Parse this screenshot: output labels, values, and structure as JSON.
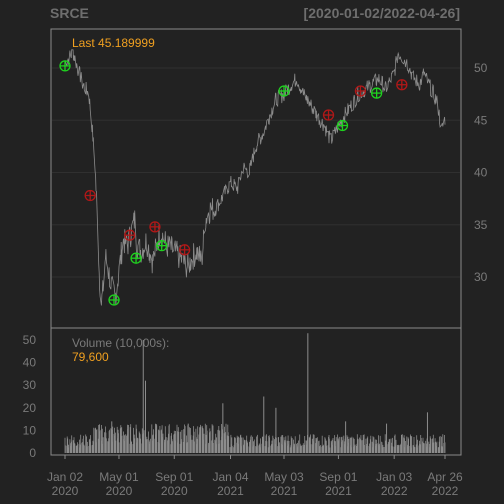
{
  "header": {
    "symbol": "SRCE",
    "date_range": "[2020-01-02/2022-04-26]"
  },
  "chart_data": [
    {
      "type": "line",
      "name": "price-panel",
      "annotation_label": "Last 45.189999",
      "ylim": [
        24.8,
        54.0
      ],
      "y_ticks": [
        30,
        35,
        40,
        45,
        50
      ],
      "x": [
        "2020-01-02",
        "2020-01-20",
        "2020-02-10",
        "2020-02-24",
        "2020-03-02",
        "2020-03-09",
        "2020-03-12",
        "2020-03-16",
        "2020-03-18",
        "2020-03-23",
        "2020-03-26",
        "2020-04-01",
        "2020-04-08",
        "2020-04-15",
        "2020-04-22",
        "2020-05-01",
        "2020-05-10",
        "2020-05-20",
        "2020-06-05",
        "2020-06-10",
        "2020-06-20",
        "2020-07-01",
        "2020-07-15",
        "2020-08-01",
        "2020-08-15",
        "2020-09-01",
        "2020-09-20",
        "2020-10-01",
        "2020-10-20",
        "2020-11-01",
        "2020-11-09",
        "2020-11-20",
        "2020-12-01",
        "2020-12-15",
        "2021-01-04",
        "2021-01-20",
        "2021-02-01",
        "2021-02-15",
        "2021-03-01",
        "2021-03-20",
        "2021-04-01",
        "2021-04-15",
        "2021-05-03",
        "2021-05-20",
        "2021-06-01",
        "2021-06-15",
        "2021-07-01",
        "2021-07-15",
        "2021-08-01",
        "2021-08-15",
        "2021-09-01",
        "2021-09-15",
        "2021-10-01",
        "2021-10-15",
        "2021-11-01",
        "2021-11-15",
        "2021-12-01",
        "2021-12-15",
        "2022-01-03",
        "2022-01-12",
        "2022-02-01",
        "2022-02-15",
        "2022-03-01",
        "2022-03-10",
        "2022-03-20",
        "2022-04-01",
        "2022-04-10",
        "2022-04-18",
        "2022-04-26"
      ],
      "close": [
        50.5,
        51.5,
        48.5,
        47.5,
        44.5,
        40.5,
        37.5,
        33.5,
        30.5,
        27.5,
        28.5,
        32.0,
        30.5,
        29.0,
        28.0,
        30.5,
        33.5,
        33.0,
        35.5,
        33.0,
        32.5,
        33.5,
        31.5,
        34.5,
        33.0,
        32.5,
        31.5,
        31.0,
        32.5,
        31.5,
        35.5,
        36.5,
        36.5,
        37.5,
        39.0,
        38.5,
        40.5,
        40.0,
        42.5,
        44.0,
        45.5,
        47.0,
        47.5,
        48.5,
        49.0,
        47.5,
        46.5,
        45.5,
        44.5,
        43.0,
        44.5,
        45.5,
        46.5,
        47.5,
        48.0,
        48.5,
        49.0,
        48.0,
        49.5,
        51.5,
        50.5,
        49.0,
        48.5,
        49.5,
        48.5,
        47.5,
        46.5,
        44.0,
        45.19
      ],
      "markers_green": [
        {
          "date": "2020-01-02",
          "price": 50.2
        },
        {
          "date": "2020-04-20",
          "price": 27.8
        },
        {
          "date": "2020-06-08",
          "price": 31.8
        },
        {
          "date": "2020-08-04",
          "price": 33.0
        },
        {
          "date": "2021-05-03",
          "price": 47.8
        },
        {
          "date": "2021-09-10",
          "price": 44.5
        },
        {
          "date": "2021-11-25",
          "price": 47.6
        }
      ],
      "markers_red": [
        {
          "date": "2020-02-27",
          "price": 37.8
        },
        {
          "date": "2020-05-25",
          "price": 34.0
        },
        {
          "date": "2020-07-20",
          "price": 34.8
        },
        {
          "date": "2020-09-24",
          "price": 32.6
        },
        {
          "date": "2021-08-10",
          "price": 45.5
        },
        {
          "date": "2021-10-20",
          "price": 47.8
        },
        {
          "date": "2022-01-20",
          "price": 48.4
        }
      ]
    },
    {
      "type": "bar",
      "name": "volume-panel",
      "label": "Volume (10,000s):",
      "last_value_label": "79,600",
      "ylim": [
        0,
        55
      ],
      "y_ticks": [
        0,
        10,
        20,
        30,
        40,
        50
      ],
      "spikes": [
        {
          "date": "2020-04-15",
          "volume": 14
        },
        {
          "date": "2020-06-24",
          "volume": 50
        },
        {
          "date": "2020-06-29",
          "volume": 32
        },
        {
          "date": "2020-10-02",
          "volume": 13
        },
        {
          "date": "2020-12-18",
          "volume": 22
        },
        {
          "date": "2021-03-19",
          "volume": 25
        },
        {
          "date": "2021-04-15",
          "volume": 20
        },
        {
          "date": "2021-06-25",
          "volume": 53
        },
        {
          "date": "2021-09-17",
          "volume": 14
        },
        {
          "date": "2021-12-17",
          "volume": 13
        },
        {
          "date": "2022-03-18",
          "volume": 18
        }
      ],
      "baseline_avg": 6
    }
  ],
  "x_axis": {
    "start": "2020-01-02",
    "end": "2022-04-26",
    "ticks": [
      {
        "date": "2020-01-02",
        "line1": "Jan 02",
        "line2": "2020"
      },
      {
        "date": "2020-05-01",
        "line1": "May 01",
        "line2": "2020"
      },
      {
        "date": "2020-09-01",
        "line1": "Sep 01",
        "line2": "2020"
      },
      {
        "date": "2021-01-04",
        "line1": "Jan 04",
        "line2": "2021"
      },
      {
        "date": "2021-05-03",
        "line1": "May 03",
        "line2": "2021"
      },
      {
        "date": "2021-09-01",
        "line1": "Sep 01",
        "line2": "2021"
      },
      {
        "date": "2022-01-03",
        "line1": "Jan 03",
        "line2": "2022"
      },
      {
        "date": "2022-04-26",
        "line1": "Apr 26",
        "line2": "2022"
      }
    ]
  },
  "colors": {
    "background": "#222222",
    "frame": "#8a8a8a",
    "grid": "#303030",
    "line": "#8c8c8c",
    "text": "#7a7a7a",
    "highlight": "#f0a020",
    "marker_green": "#1fd21f",
    "marker_red": "#b01818"
  }
}
